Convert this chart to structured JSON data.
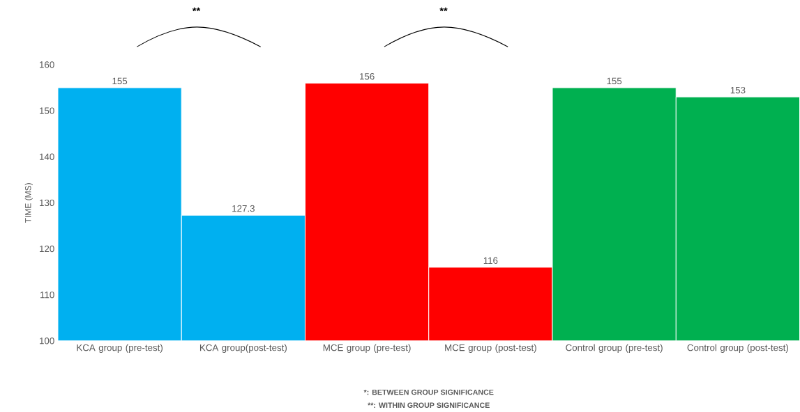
{
  "chart_data": {
    "type": "bar",
    "ylabel": "TIME (MS)",
    "categories": [
      "KCA group (pre-test)",
      "KCA group(post-test)",
      "MCE group (pre-test)",
      "MCE group (post-test)",
      "Control group (pre-test)",
      "Control group (post-test)"
    ],
    "values": [
      155,
      127.3,
      156,
      116,
      155,
      153
    ],
    "colors": [
      "#00b0f0",
      "#00b0f0",
      "#ff0000",
      "#ff0000",
      "#00b050",
      "#00b050"
    ],
    "ylim": [
      100,
      160
    ],
    "yticks": [
      100,
      110,
      120,
      130,
      140,
      150,
      160
    ],
    "data_labels": true,
    "grid": false,
    "annotations": [
      "**",
      "**",
      "*: BETWEEN GROUP SIGNIFICANCE",
      "**: WITHIN GROUP SIGNIFICANCE"
    ]
  }
}
